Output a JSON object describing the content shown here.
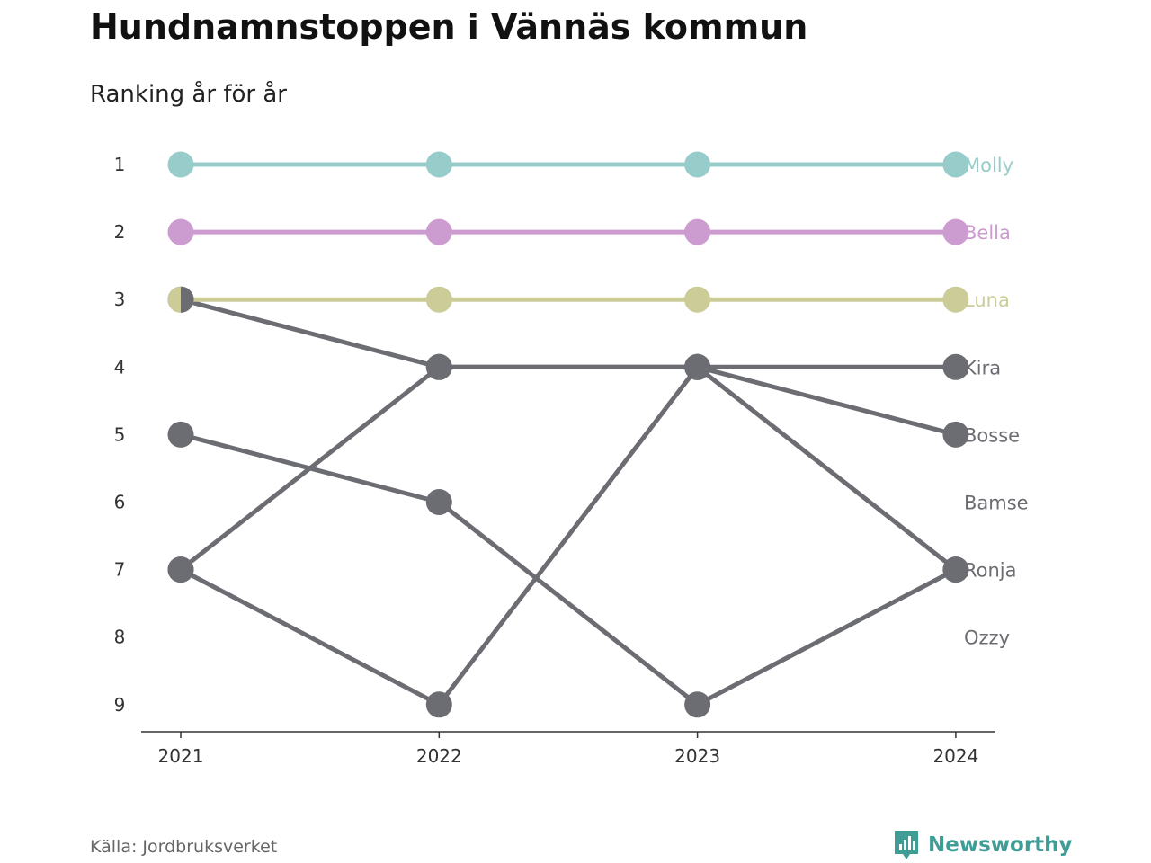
{
  "chart_data": {
    "type": "line",
    "title": "Hundnamnstoppen i Vännäs kommun",
    "subtitle": "Ranking år för år",
    "x": [
      "2021",
      "2022",
      "2023",
      "2024"
    ],
    "y_ticks": [
      "1",
      "2",
      "3",
      "4",
      "5",
      "6",
      "7",
      "8",
      "9"
    ],
    "ylim": [
      1,
      9
    ],
    "y_inverted": true,
    "grid": false,
    "legend": "labels at line ends (right)",
    "series": [
      {
        "name": "Molly",
        "values": [
          1,
          1,
          1,
          1
        ],
        "color": "#97ccca"
      },
      {
        "name": "Bella",
        "values": [
          2,
          2,
          2,
          2
        ],
        "color": "#cc9bcf"
      },
      {
        "name": "Luna",
        "values": [
          3,
          3,
          3,
          3
        ],
        "color": "#cccc99"
      },
      {
        "name": "Kira",
        "values": [
          3,
          4,
          4,
          4
        ],
        "color": "#6c6c73"
      },
      {
        "name": "Bosse",
        "values": [
          7,
          4,
          4,
          5
        ],
        "color": "#6c6c73"
      },
      {
        "name": "Bamse",
        "values": [
          5,
          6,
          9,
          7
        ],
        "color": "#6c6c73"
      },
      {
        "name": "Ronja",
        "values": [
          7,
          9,
          4,
          7
        ],
        "color": "#6c6c73"
      },
      {
        "name": "Ozzy",
        "values": [
          null,
          null,
          null,
          null
        ],
        "color": "#6c6c73"
      }
    ],
    "label_colors": {
      "Molly": "#97ccca",
      "Bella": "#cc9bcf",
      "Luna": "#cccc99",
      "Kira": "#6c6c73",
      "Bosse": "#6c6c73",
      "Bamse": "#6c6c73",
      "Ronja": "#6c6c73",
      "Ozzy": "#6c6c73"
    }
  },
  "footer": {
    "source": "Källa: Jordbruksverket",
    "brand": "Newsworthy",
    "brand_icon": "bar-chart-bubble-icon",
    "brand_color": "#3f9d96"
  }
}
